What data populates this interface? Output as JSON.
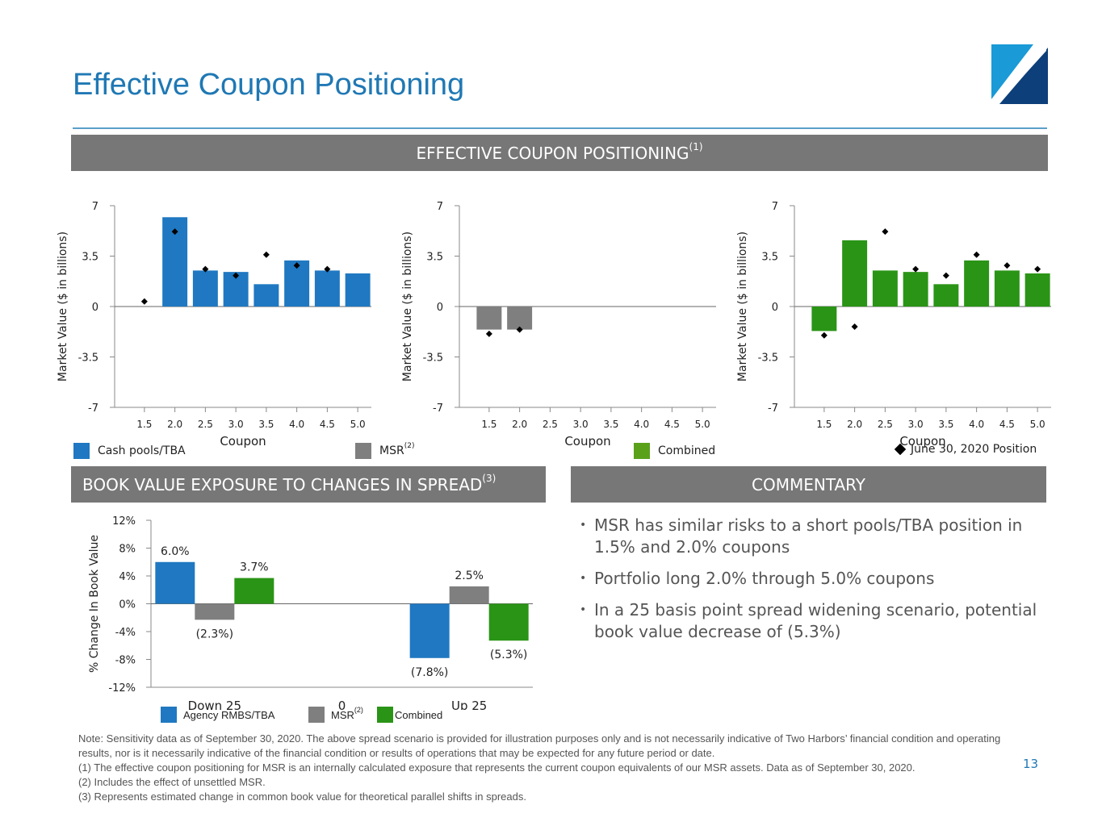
{
  "page": {
    "title": "Effective Coupon Positioning",
    "page_number": "13"
  },
  "top_header": {
    "label": "EFFECTIVE COUPON POSITIONING",
    "sup": "(1)"
  },
  "bv_header": {
    "label": "BOOK VALUE EXPOSURE TO CHANGES IN SPREAD",
    "sup": "(3)"
  },
  "commentary_header": {
    "label": "COMMENTARY"
  },
  "colors": {
    "blue": "#1f78c1",
    "gray": "#7f7f7f",
    "green": "#2a9416",
    "legend_green": "#5aa11a",
    "accent": "#1f78b4"
  },
  "top_legend": {
    "cash": "Cash pools/TBA",
    "msr": "MSR",
    "msr_sup": "(2)",
    "combined": "Combined",
    "position": "June 30, 2020 Position"
  },
  "bottom_legend": {
    "agency": "Agency RMBS/TBA",
    "msr": "MSR",
    "msr_sup": "(2)",
    "combined": "Combined"
  },
  "commentary": [
    "MSR has similar risks to a short pools/TBA position in 1.5% and 2.0% coupons",
    "Portfolio long 2.0% through 5.0% coupons",
    "In a 25 basis point spread widening scenario, potential book value decrease of (5.3%)"
  ],
  "notes": [
    "Note: Sensitivity data as of September 30, 2020.  The above spread scenario is provided for illustration purposes only and is not necessarily indicative of Two Harbors’ financial condition and operating results, nor is it necessarily indicative of the financial condition or results of operations that may be expected for any future period or date.",
    "(1) The effective coupon positioning for MSR is an internally calculated exposure that represents the current coupon equivalents of our MSR assets. Data as of September 30, 2020.",
    "(2) Includes the effect of unsettled MSR.",
    "(3) Represents estimated change in common book value for theoretical parallel shifts in spreads."
  ],
  "chart_data": [
    {
      "type": "bar",
      "name": "cash-pools-chart",
      "categories": [
        "1.5",
        "2.0",
        "2.5",
        "3.0",
        "3.5",
        "4.0",
        "4.5",
        "5.0"
      ],
      "values": [
        0,
        6.2,
        2.5,
        2.4,
        1.55,
        3.2,
        2.5,
        2.3
      ],
      "markers": [
        0.35,
        5.2,
        2.6,
        2.15,
        3.6,
        2.85,
        2.6,
        null
      ],
      "color": "#1f78c1",
      "xlabel": "Coupon",
      "ylabel": "Market Value ($ in billions)",
      "ylim": [
        -7,
        7
      ],
      "yticks": [
        "7",
        "3.5",
        "0",
        "-3.5",
        "-7"
      ]
    },
    {
      "type": "bar",
      "name": "msr-chart",
      "categories": [
        "1.5",
        "2.0",
        "2.5",
        "3.0",
        "3.5",
        "4.0",
        "4.5",
        "5.0"
      ],
      "values": [
        -1.6,
        -1.6,
        0,
        0,
        0,
        0,
        0,
        0
      ],
      "markers": [
        -1.9,
        -1.6,
        null,
        null,
        null,
        null,
        null,
        null
      ],
      "color": "#7f7f7f",
      "xlabel": "Coupon",
      "ylabel": "Market Value ($ in billions)",
      "ylim": [
        -7,
        7
      ],
      "yticks": [
        "7",
        "3.5",
        "0",
        "-3.5",
        "-7"
      ]
    },
    {
      "type": "bar",
      "name": "combined-chart",
      "categories": [
        "1.5",
        "2.0",
        "2.5",
        "3.0",
        "3.5",
        "4.0",
        "4.5",
        "5.0"
      ],
      "values": [
        -1.7,
        4.6,
        2.5,
        2.4,
        1.55,
        3.2,
        2.5,
        2.3
      ],
      "markers": [
        -2.0,
        -1.4,
        5.2,
        2.6,
        2.15,
        3.6,
        2.85,
        2.6
      ],
      "color": "#2a9416",
      "xlabel": "Coupon",
      "ylabel": "Market Value ($ in billions)",
      "ylim": [
        -7,
        7
      ],
      "yticks": [
        "7",
        "3.5",
        "0",
        "-3.5",
        "-7"
      ]
    },
    {
      "type": "bar",
      "name": "book-value-chart",
      "categories": [
        "Down 25",
        "0",
        "Up 25"
      ],
      "series": [
        {
          "name": "Agency RMBS/TBA",
          "values": [
            6.0,
            null,
            -7.8
          ],
          "labels": [
            "6.0%",
            "",
            "(7.8%)"
          ],
          "color": "#1f78c1"
        },
        {
          "name": "MSR",
          "values": [
            -2.3,
            null,
            2.5
          ],
          "labels": [
            "(2.3%)",
            "",
            "2.5%"
          ],
          "color": "#7f7f7f"
        },
        {
          "name": "Combined",
          "values": [
            3.7,
            null,
            -5.3
          ],
          "labels": [
            "3.7%",
            "",
            "(5.3%)"
          ],
          "color": "#2a9416"
        }
      ],
      "ylabel": "% Change In Book Value",
      "ylim": [
        -12,
        12
      ],
      "yticks": [
        "12%",
        "8%",
        "4%",
        "0%",
        "-4%",
        "-8%",
        "-12%"
      ]
    }
  ]
}
